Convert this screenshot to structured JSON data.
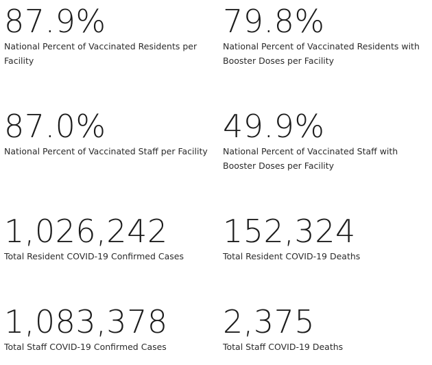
{
  "stats": [
    {
      "value": "87.9%",
      "label": "National Percent of Vaccinated Residents per Facility"
    },
    {
      "value": "79.8%",
      "label": "National Percent of Vaccinated Residents with Booster Doses per Facility"
    },
    {
      "value": "87.0%",
      "label": "National Percent of Vaccinated Staff per Facility"
    },
    {
      "value": "49.9%",
      "label": "National Percent of Vaccinated Staff with Booster Doses per Facility"
    },
    {
      "value": "1,026,242",
      "label": "Total Resident COVID-19 Confirmed Cases"
    },
    {
      "value": "152,324",
      "label": "Total Resident COVID-19 Deaths"
    },
    {
      "value": "1,083,378",
      "label": "Total Staff COVID-19 Confirmed Cases"
    },
    {
      "value": "2,375",
      "label": "Total Staff COVID-19 Deaths"
    }
  ]
}
